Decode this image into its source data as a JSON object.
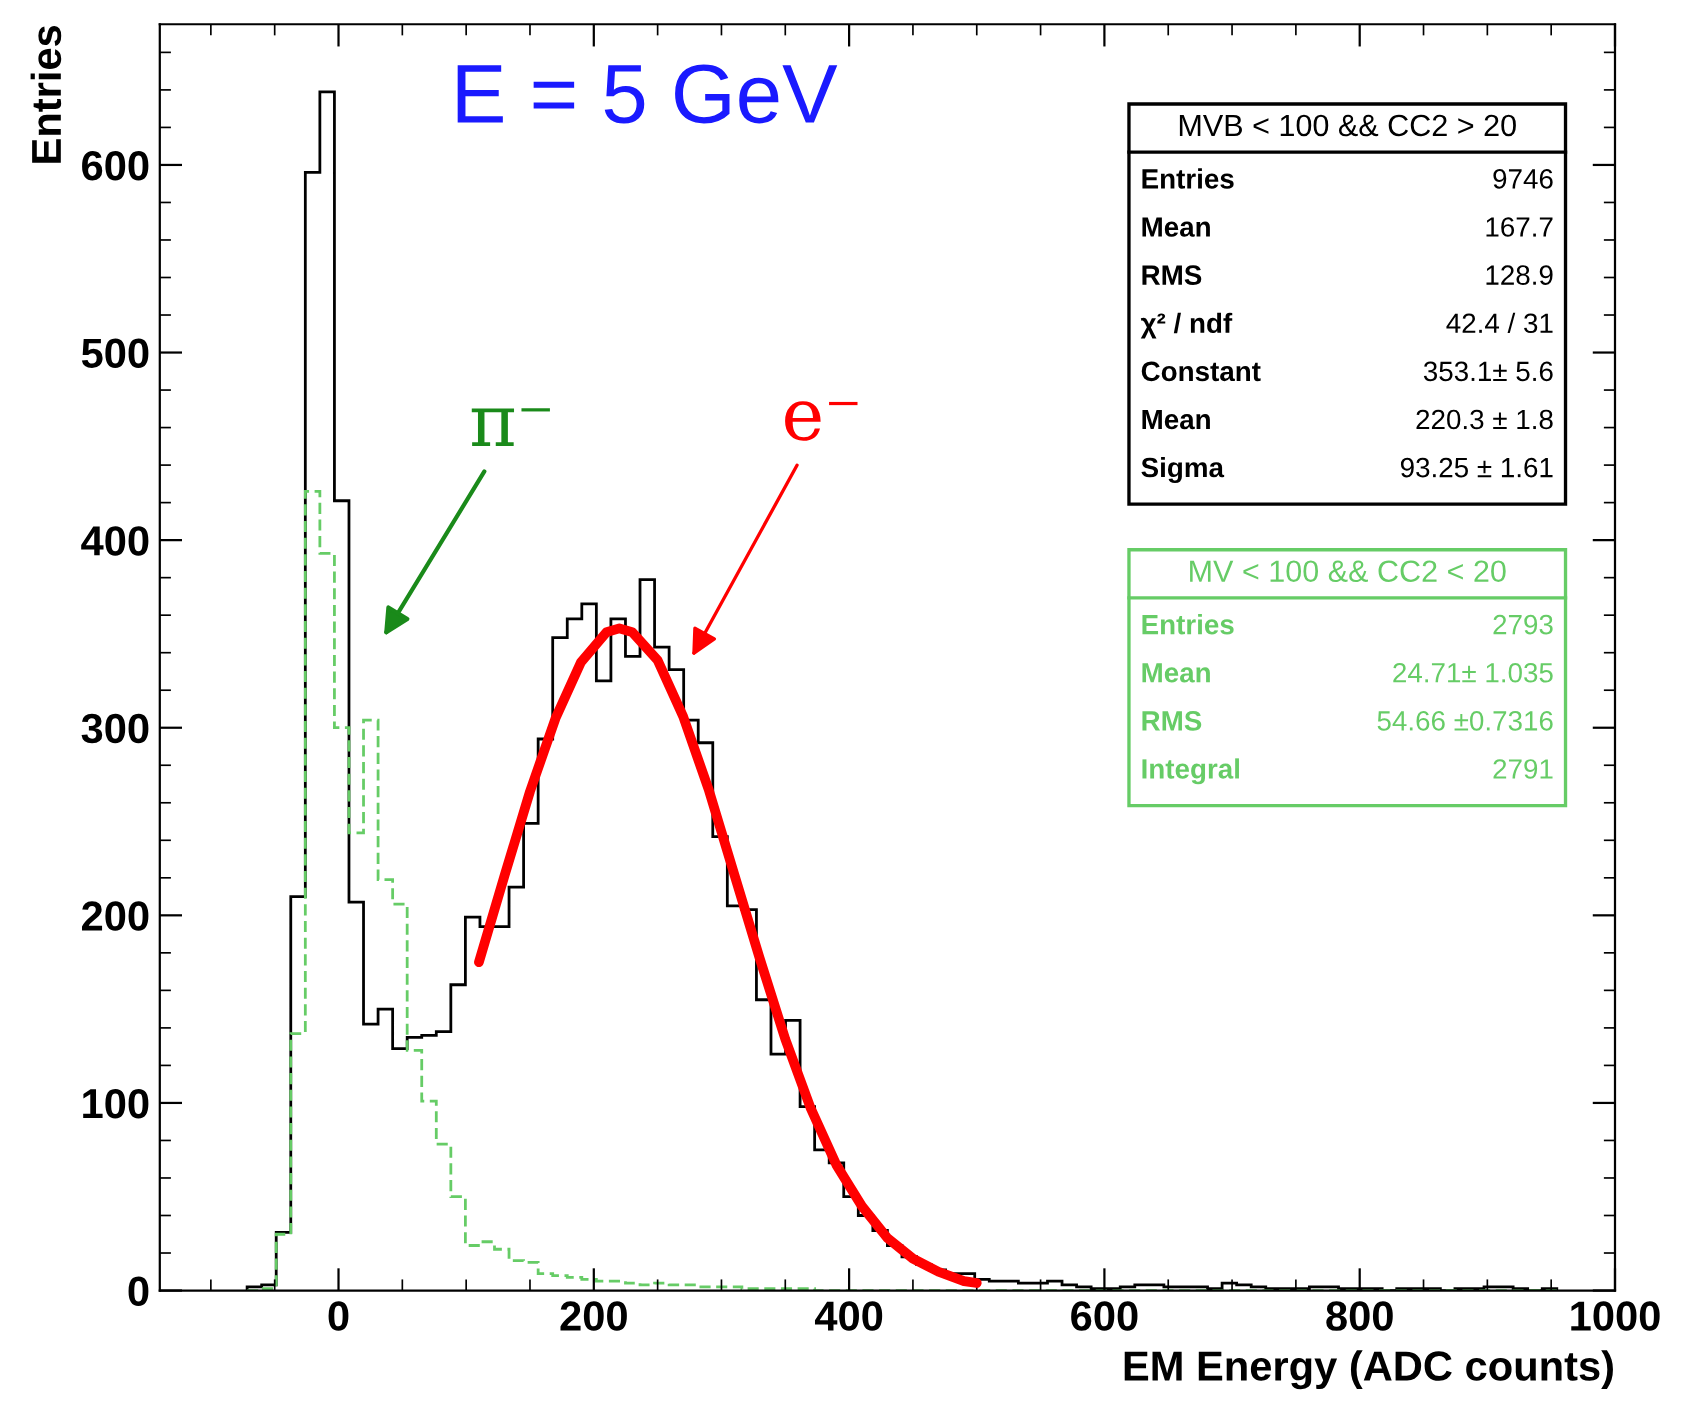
{
  "chart_data": {
    "type": "histogram",
    "xlabel": "EM Energy (ADC counts)",
    "ylabel": "Entries",
    "xlim": [
      -140,
      1000
    ],
    "xticks": [
      0,
      200,
      400,
      600,
      800,
      1000
    ],
    "ylim": [
      0,
      675
    ],
    "yticks": [
      0,
      100,
      200,
      300,
      400,
      500,
      600
    ],
    "grid": false,
    "legend": "top right",
    "bins": [
      -71.6,
      -60.2,
      -48.8,
      -37.4,
      -26,
      -14.6,
      -3.2,
      8.2,
      19.6,
      31,
      42.4,
      53.8,
      65.2,
      76.6,
      88,
      99.4,
      110.8,
      122.2,
      133.6,
      145,
      156.4,
      167.8,
      179.2,
      190.6,
      202,
      213.4,
      224.8,
      236.2,
      247.6,
      259,
      270.4,
      281.8,
      293.2,
      304.6,
      316,
      327.4,
      338.8,
      350.2,
      361.6,
      373,
      384.4,
      395.8,
      407.2,
      418.6,
      430,
      441.4,
      452.8,
      464.2,
      475.6,
      487,
      498.4,
      509.8,
      521.2,
      532.6,
      544,
      555.4,
      566.8,
      578.2,
      589.6,
      601,
      612.4,
      623.8,
      635.2,
      646.6,
      658,
      669.4,
      680.8,
      692.2,
      703.6,
      715,
      726.4,
      737.8,
      749.2,
      760.6,
      772,
      783.4,
      794.8,
      806.2,
      817.6,
      829,
      840.4,
      851.8,
      863.2,
      874.6,
      886,
      897.4,
      908.8,
      920.2,
      931.6,
      943,
      954.4
    ],
    "series": [
      {
        "name": "MVB < 100 && CC2 > 20",
        "color": "#000000",
        "line_style": "solid",
        "values": [
          2,
          3,
          31,
          210,
          596,
          639,
          421,
          207,
          142,
          150,
          129,
          135,
          136,
          138,
          163,
          199,
          194,
          194,
          215,
          249,
          294,
          348,
          358,
          366,
          325,
          358,
          338,
          379,
          343,
          331,
          304,
          292,
          242,
          205,
          203,
          155,
          126,
          144,
          98,
          75,
          68,
          50,
          40,
          32,
          24,
          18,
          14,
          11,
          9,
          9,
          6,
          5,
          5,
          4,
          4,
          5,
          3,
          2,
          1,
          1,
          2,
          3,
          3,
          2,
          2,
          2,
          1,
          4,
          3,
          2,
          1,
          1,
          1,
          2,
          2,
          1,
          1,
          1,
          0,
          1,
          1,
          1,
          0,
          1,
          1,
          2,
          2,
          1,
          0,
          1
        ]
      },
      {
        "name": "MV < 100 && CC2 < 20",
        "color": "#66cc66",
        "line_style": "dashed",
        "values": [
          0,
          1,
          30,
          137,
          426,
          393,
          300,
          244,
          304,
          219,
          206,
          128,
          101,
          78,
          50,
          24,
          26,
          22,
          16,
          15,
          9,
          8,
          7,
          6,
          5,
          5,
          4,
          3,
          4,
          3,
          3,
          2,
          2,
          2,
          1,
          1,
          1,
          1,
          1,
          0,
          0,
          0,
          0,
          0,
          0,
          0,
          0,
          0,
          0,
          0,
          0,
          0,
          0,
          0,
          0,
          0,
          0,
          0,
          0,
          0,
          0,
          0,
          0,
          0,
          0,
          0,
          0,
          0,
          0,
          0,
          0,
          0,
          0,
          0,
          0,
          0,
          0,
          0,
          0,
          0,
          0,
          0,
          0,
          0,
          0,
          0,
          0,
          0,
          0,
          0
        ]
      },
      {
        "type": "line",
        "color": "#ff0000",
        "line_style": "solid",
        "x": [
          110,
          130,
          150,
          170,
          190,
          210,
          220,
          230,
          250,
          270,
          290,
          310,
          330,
          350,
          370,
          390,
          410,
          430,
          450,
          470,
          490,
          500
        ],
        "values": [
          175,
          221,
          266,
          305,
          335,
          351,
          353,
          351,
          336,
          306,
          267,
          222,
          177,
          134,
          97,
          67,
          45,
          28,
          17,
          10,
          5,
          4
        ]
      }
    ],
    "annotations": [
      "E = 5 GeV",
      "π⁻",
      "e⁻",
      "Entries",
      "9746",
      "Mean",
      "167.7",
      "RMS",
      "128.9",
      "χ² / ndf",
      "42.4 / 31",
      "Constant",
      "353.1± 5.6",
      "Mean",
      "220.3 ± 1.8",
      "Sigma",
      "93.25 ± 1.61",
      "Entries",
      "2793",
      "Mean",
      "24.71± 1.035",
      "RMS",
      "54.66 ±0.7316",
      "Integral",
      "2791"
    ]
  }
}
